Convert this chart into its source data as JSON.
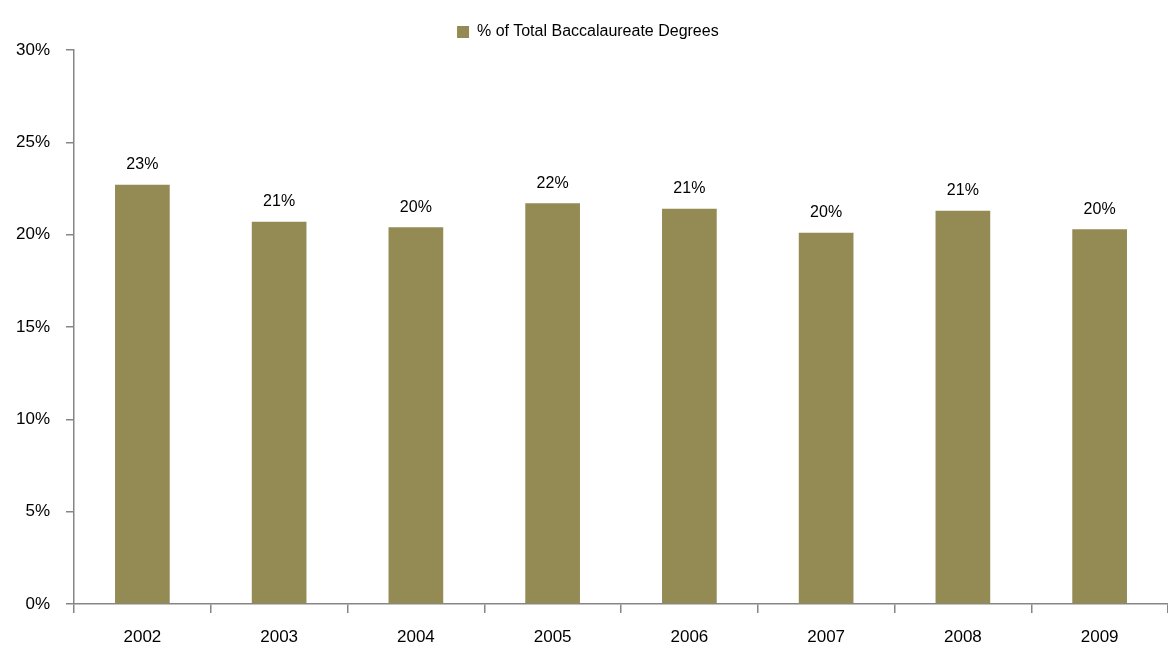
{
  "chart_data": {
    "type": "bar",
    "categories": [
      "2002",
      "2003",
      "2004",
      "2005",
      "2006",
      "2007",
      "2008",
      "2009"
    ],
    "series": [
      {
        "name": "% of Total Baccalaureate Degrees",
        "color": "#948a54",
        "values": [
          22.7,
          20.7,
          20.4,
          21.7,
          21.4,
          20.1,
          21.3,
          20.3
        ],
        "value_labels": [
          "23%",
          "21%",
          "20%",
          "22%",
          "21%",
          "20%",
          "21%",
          "20%"
        ]
      }
    ],
    "ylim": [
      0,
      30
    ],
    "yticks": [
      {
        "value": 0,
        "label": "0%"
      },
      {
        "value": 5,
        "label": "5%"
      },
      {
        "value": 10,
        "label": "10%"
      },
      {
        "value": 15,
        "label": "15%"
      },
      {
        "value": 20,
        "label": "20%"
      },
      {
        "value": 25,
        "label": "25%"
      },
      {
        "value": 30,
        "label": "30%"
      }
    ],
    "grid": false,
    "legend": "top"
  }
}
